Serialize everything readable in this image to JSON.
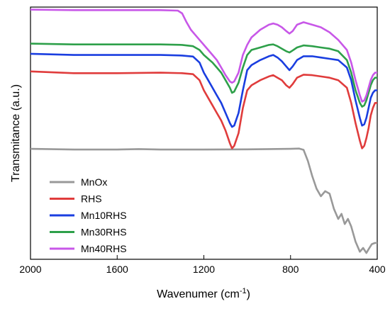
{
  "chart_data": {
    "type": "line",
    "xlabel": "Wavenumer (cm",
    "xlabel_sup": "-1",
    "xlabel_close": ")",
    "ylabel": "Transmitance (a.u.)",
    "xlim": [
      2000,
      400
    ],
    "x_reversed": true,
    "y_ticks_shown": false,
    "x_ticks": [
      2000,
      1600,
      1200,
      800,
      400
    ],
    "legend_position": "bottom-left",
    "series": [
      {
        "name": "MnOx",
        "color": "#999999",
        "points": [
          [
            2000,
            0.562
          ],
          [
            1800,
            0.565
          ],
          [
            1600,
            0.565
          ],
          [
            1500,
            0.563
          ],
          [
            1400,
            0.565
          ],
          [
            1200,
            0.565
          ],
          [
            1000,
            0.564
          ],
          [
            800,
            0.562
          ],
          [
            760,
            0.561
          ],
          [
            740,
            0.566
          ],
          [
            720,
            0.61
          ],
          [
            700,
            0.67
          ],
          [
            680,
            0.72
          ],
          [
            660,
            0.75
          ],
          [
            640,
            0.73
          ],
          [
            620,
            0.74
          ],
          [
            600,
            0.8
          ],
          [
            580,
            0.84
          ],
          [
            565,
            0.82
          ],
          [
            550,
            0.86
          ],
          [
            535,
            0.84
          ],
          [
            520,
            0.87
          ],
          [
            500,
            0.93
          ],
          [
            480,
            0.97
          ],
          [
            465,
            0.955
          ],
          [
            450,
            0.975
          ],
          [
            440,
            0.96
          ],
          [
            425,
            0.94
          ],
          [
            410,
            0.935
          ],
          [
            400,
            0.935
          ]
        ]
      },
      {
        "name": "RHS",
        "color": "#e03c3c",
        "points": [
          [
            2000,
            0.255
          ],
          [
            1800,
            0.262
          ],
          [
            1600,
            0.262
          ],
          [
            1400,
            0.26
          ],
          [
            1300,
            0.262
          ],
          [
            1250,
            0.266
          ],
          [
            1220,
            0.29
          ],
          [
            1200,
            0.33
          ],
          [
            1180,
            0.36
          ],
          [
            1160,
            0.39
          ],
          [
            1140,
            0.42
          ],
          [
            1120,
            0.45
          ],
          [
            1100,
            0.49
          ],
          [
            1080,
            0.54
          ],
          [
            1070,
            0.56
          ],
          [
            1060,
            0.55
          ],
          [
            1040,
            0.5
          ],
          [
            1020,
            0.4
          ],
          [
            1000,
            0.33
          ],
          [
            980,
            0.31
          ],
          [
            960,
            0.3
          ],
          [
            940,
            0.29
          ],
          [
            900,
            0.275
          ],
          [
            880,
            0.27
          ],
          [
            860,
            0.28
          ],
          [
            840,
            0.29
          ],
          [
            820,
            0.31
          ],
          [
            805,
            0.32
          ],
          [
            790,
            0.305
          ],
          [
            770,
            0.28
          ],
          [
            740,
            0.268
          ],
          [
            700,
            0.27
          ],
          [
            660,
            0.275
          ],
          [
            620,
            0.28
          ],
          [
            580,
            0.29
          ],
          [
            540,
            0.32
          ],
          [
            520,
            0.38
          ],
          [
            500,
            0.46
          ],
          [
            480,
            0.53
          ],
          [
            470,
            0.56
          ],
          [
            460,
            0.55
          ],
          [
            450,
            0.52
          ],
          [
            440,
            0.48
          ],
          [
            430,
            0.43
          ],
          [
            420,
            0.4
          ],
          [
            410,
            0.38
          ],
          [
            400,
            0.38
          ]
        ]
      },
      {
        "name": "Mn10RHS",
        "color": "#1a3ee0",
        "points": [
          [
            2000,
            0.185
          ],
          [
            1800,
            0.19
          ],
          [
            1600,
            0.19
          ],
          [
            1400,
            0.19
          ],
          [
            1300,
            0.192
          ],
          [
            1250,
            0.196
          ],
          [
            1220,
            0.22
          ],
          [
            1200,
            0.26
          ],
          [
            1180,
            0.29
          ],
          [
            1160,
            0.32
          ],
          [
            1140,
            0.35
          ],
          [
            1120,
            0.38
          ],
          [
            1100,
            0.42
          ],
          [
            1080,
            0.46
          ],
          [
            1070,
            0.475
          ],
          [
            1060,
            0.47
          ],
          [
            1040,
            0.42
          ],
          [
            1020,
            0.33
          ],
          [
            1000,
            0.25
          ],
          [
            980,
            0.23
          ],
          [
            960,
            0.22
          ],
          [
            940,
            0.21
          ],
          [
            900,
            0.195
          ],
          [
            880,
            0.19
          ],
          [
            860,
            0.2
          ],
          [
            840,
            0.215
          ],
          [
            820,
            0.235
          ],
          [
            805,
            0.25
          ],
          [
            790,
            0.235
          ],
          [
            770,
            0.21
          ],
          [
            740,
            0.195
          ],
          [
            700,
            0.195
          ],
          [
            660,
            0.2
          ],
          [
            620,
            0.205
          ],
          [
            580,
            0.21
          ],
          [
            540,
            0.24
          ],
          [
            520,
            0.29
          ],
          [
            500,
            0.37
          ],
          [
            480,
            0.44
          ],
          [
            470,
            0.47
          ],
          [
            460,
            0.465
          ],
          [
            450,
            0.44
          ],
          [
            440,
            0.4
          ],
          [
            430,
            0.36
          ],
          [
            420,
            0.34
          ],
          [
            410,
            0.33
          ],
          [
            400,
            0.33
          ]
        ]
      },
      {
        "name": "Mn30RHS",
        "color": "#2ea04a",
        "points": [
          [
            2000,
            0.145
          ],
          [
            1800,
            0.148
          ],
          [
            1600,
            0.148
          ],
          [
            1400,
            0.148
          ],
          [
            1300,
            0.15
          ],
          [
            1250,
            0.155
          ],
          [
            1220,
            0.17
          ],
          [
            1200,
            0.19
          ],
          [
            1180,
            0.205
          ],
          [
            1160,
            0.22
          ],
          [
            1140,
            0.24
          ],
          [
            1120,
            0.26
          ],
          [
            1100,
            0.29
          ],
          [
            1080,
            0.32
          ],
          [
            1070,
            0.34
          ],
          [
            1060,
            0.335
          ],
          [
            1040,
            0.3
          ],
          [
            1020,
            0.24
          ],
          [
            1000,
            0.19
          ],
          [
            980,
            0.17
          ],
          [
            960,
            0.165
          ],
          [
            940,
            0.16
          ],
          [
            900,
            0.15
          ],
          [
            880,
            0.148
          ],
          [
            860,
            0.155
          ],
          [
            840,
            0.165
          ],
          [
            820,
            0.175
          ],
          [
            805,
            0.18
          ],
          [
            790,
            0.172
          ],
          [
            770,
            0.16
          ],
          [
            740,
            0.152
          ],
          [
            700,
            0.155
          ],
          [
            660,
            0.16
          ],
          [
            620,
            0.165
          ],
          [
            580,
            0.175
          ],
          [
            540,
            0.21
          ],
          [
            520,
            0.26
          ],
          [
            500,
            0.33
          ],
          [
            480,
            0.38
          ],
          [
            470,
            0.395
          ],
          [
            460,
            0.39
          ],
          [
            450,
            0.37
          ],
          [
            440,
            0.34
          ],
          [
            430,
            0.31
          ],
          [
            420,
            0.29
          ],
          [
            410,
            0.28
          ],
          [
            400,
            0.28
          ]
        ]
      },
      {
        "name": "Mn40RHS",
        "color": "#c857e8",
        "points": [
          [
            2000,
            0.01
          ],
          [
            1800,
            0.012
          ],
          [
            1600,
            0.012
          ],
          [
            1400,
            0.012
          ],
          [
            1320,
            0.014
          ],
          [
            1300,
            0.025
          ],
          [
            1280,
            0.06
          ],
          [
            1260,
            0.09
          ],
          [
            1240,
            0.11
          ],
          [
            1220,
            0.13
          ],
          [
            1200,
            0.15
          ],
          [
            1180,
            0.17
          ],
          [
            1160,
            0.19
          ],
          [
            1140,
            0.21
          ],
          [
            1120,
            0.24
          ],
          [
            1100,
            0.27
          ],
          [
            1080,
            0.295
          ],
          [
            1070,
            0.3
          ],
          [
            1060,
            0.295
          ],
          [
            1040,
            0.26
          ],
          [
            1020,
            0.19
          ],
          [
            1000,
            0.15
          ],
          [
            980,
            0.12
          ],
          [
            960,
            0.105
          ],
          [
            940,
            0.09
          ],
          [
            900,
            0.07
          ],
          [
            880,
            0.065
          ],
          [
            860,
            0.07
          ],
          [
            840,
            0.08
          ],
          [
            820,
            0.095
          ],
          [
            805,
            0.105
          ],
          [
            790,
            0.095
          ],
          [
            770,
            0.07
          ],
          [
            740,
            0.06
          ],
          [
            700,
            0.07
          ],
          [
            660,
            0.08
          ],
          [
            620,
            0.1
          ],
          [
            580,
            0.13
          ],
          [
            540,
            0.17
          ],
          [
            520,
            0.22
          ],
          [
            500,
            0.29
          ],
          [
            480,
            0.35
          ],
          [
            470,
            0.375
          ],
          [
            460,
            0.37
          ],
          [
            450,
            0.35
          ],
          [
            440,
            0.32
          ],
          [
            430,
            0.29
          ],
          [
            420,
            0.27
          ],
          [
            410,
            0.26
          ],
          [
            400,
            0.26
          ]
        ]
      }
    ]
  }
}
